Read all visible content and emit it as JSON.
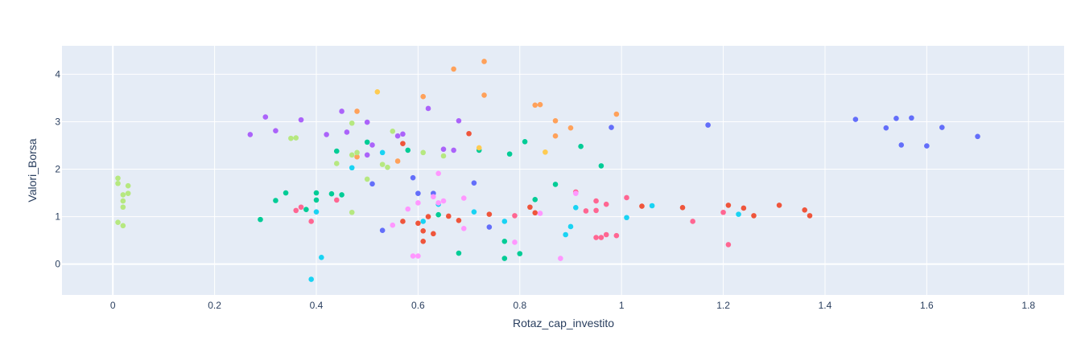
{
  "chart_data": {
    "type": "scatter",
    "title": "",
    "xlabel": "Rotaz_cap_investito",
    "ylabel": "Valori_Borsa",
    "xlim": [
      -0.1,
      1.87
    ],
    "ylim": [
      -0.65,
      4.6
    ],
    "xticks": [
      0,
      0.2,
      0.4,
      0.6,
      0.8,
      1,
      1.2,
      1.4,
      1.6,
      1.8
    ],
    "xtick_labels": [
      "0",
      "0.2",
      "0.4",
      "0.6",
      "0.8",
      "1",
      "1.2",
      "1.4",
      "1.6",
      "1.8"
    ],
    "yticks": [
      0,
      1,
      2,
      3,
      4
    ],
    "ytick_labels": [
      "0",
      "1",
      "2",
      "3",
      "4"
    ],
    "grid": true,
    "legend": "none",
    "colors": {
      "background": "#e5ecf6",
      "grid": "#ffffff",
      "text": "#2a3f5f"
    },
    "series": [
      {
        "color": "#636efa",
        "points": [
          [
            1.46,
            3.05
          ],
          [
            1.52,
            2.87
          ],
          [
            1.54,
            3.07
          ],
          [
            1.55,
            2.51
          ],
          [
            1.57,
            3.08
          ],
          [
            1.6,
            2.49
          ],
          [
            1.63,
            2.88
          ],
          [
            1.7,
            2.69
          ],
          [
            1.17,
            2.93
          ],
          [
            0.98,
            2.88
          ],
          [
            0.71,
            1.71
          ],
          [
            0.59,
            1.82
          ],
          [
            0.6,
            1.49
          ],
          [
            0.63,
            1.49
          ],
          [
            0.51,
            1.69
          ],
          [
            0.53,
            0.71
          ],
          [
            0.74,
            0.78
          ]
        ]
      },
      {
        "color": "#ef553b",
        "points": [
          [
            0.57,
            2.54
          ],
          [
            0.7,
            2.75
          ],
          [
            0.57,
            0.9
          ],
          [
            0.6,
            0.86
          ],
          [
            0.61,
            0.7
          ],
          [
            0.61,
            0.48
          ],
          [
            0.62,
            1.0
          ],
          [
            0.63,
            0.64
          ],
          [
            0.66,
            1.01
          ],
          [
            0.68,
            0.92
          ],
          [
            0.74,
            1.05
          ],
          [
            0.82,
            1.2
          ],
          [
            0.83,
            1.08
          ],
          [
            1.04,
            1.22
          ],
          [
            1.12,
            1.19
          ],
          [
            1.21,
            1.24
          ],
          [
            1.24,
            1.18
          ],
          [
            1.26,
            1.02
          ],
          [
            1.31,
            1.24
          ],
          [
            1.36,
            1.14
          ],
          [
            1.37,
            1.02
          ]
        ]
      },
      {
        "color": "#00cc96",
        "points": [
          [
            0.29,
            0.94
          ],
          [
            0.32,
            1.34
          ],
          [
            0.34,
            1.5
          ],
          [
            0.38,
            1.15
          ],
          [
            0.4,
            1.5
          ],
          [
            0.4,
            1.35
          ],
          [
            0.43,
            1.48
          ],
          [
            0.45,
            1.46
          ],
          [
            0.44,
            2.38
          ],
          [
            0.5,
            2.57
          ],
          [
            0.58,
            2.4
          ],
          [
            0.72,
            2.4
          ],
          [
            0.78,
            2.32
          ],
          [
            0.81,
            2.58
          ],
          [
            0.87,
            1.68
          ],
          [
            0.92,
            2.48
          ],
          [
            0.96,
            2.07
          ],
          [
            0.83,
            1.36
          ],
          [
            0.64,
            1.04
          ],
          [
            0.68,
            0.23
          ],
          [
            0.77,
            0.48
          ],
          [
            0.77,
            0.12
          ],
          [
            0.8,
            0.22
          ]
        ]
      },
      {
        "color": "#ab63fa",
        "points": [
          [
            0.27,
            2.73
          ],
          [
            0.3,
            3.1
          ],
          [
            0.32,
            2.81
          ],
          [
            0.37,
            3.04
          ],
          [
            0.42,
            2.73
          ],
          [
            0.45,
            3.22
          ],
          [
            0.46,
            2.78
          ],
          [
            0.5,
            2.99
          ],
          [
            0.51,
            2.51
          ],
          [
            0.5,
            2.3
          ],
          [
            0.56,
            2.7
          ],
          [
            0.57,
            2.74
          ],
          [
            0.62,
            3.28
          ],
          [
            0.65,
            2.42
          ],
          [
            0.67,
            2.4
          ],
          [
            0.68,
            3.02
          ]
        ]
      },
      {
        "color": "#ffa15a",
        "points": [
          [
            0.48,
            2.26
          ],
          [
            0.48,
            3.22
          ],
          [
            0.56,
            2.17
          ],
          [
            0.61,
            3.53
          ],
          [
            0.67,
            4.11
          ],
          [
            0.73,
            4.27
          ],
          [
            0.73,
            3.56
          ],
          [
            0.83,
            3.35
          ],
          [
            0.84,
            3.36
          ],
          [
            0.87,
            3.02
          ],
          [
            0.87,
            2.7
          ],
          [
            0.9,
            2.87
          ],
          [
            0.99,
            3.16
          ]
        ]
      },
      {
        "color": "#19d3f3",
        "points": [
          [
            0.39,
            -0.32
          ],
          [
            0.4,
            1.1
          ],
          [
            0.41,
            0.14
          ],
          [
            0.47,
            2.03
          ],
          [
            0.53,
            2.35
          ],
          [
            0.61,
            0.9
          ],
          [
            0.64,
            1.26
          ],
          [
            0.71,
            1.1
          ],
          [
            0.77,
            0.9
          ],
          [
            0.89,
            0.62
          ],
          [
            0.9,
            0.79
          ],
          [
            0.91,
            1.19
          ],
          [
            1.01,
            0.98
          ],
          [
            1.06,
            1.23
          ],
          [
            1.23,
            1.05
          ]
        ]
      },
      {
        "color": "#ff6692",
        "points": [
          [
            0.36,
            1.13
          ],
          [
            0.37,
            1.2
          ],
          [
            0.39,
            0.9
          ],
          [
            0.44,
            1.35
          ],
          [
            0.79,
            1.02
          ],
          [
            0.91,
            1.52
          ],
          [
            0.93,
            1.12
          ],
          [
            0.95,
            1.33
          ],
          [
            0.95,
            1.13
          ],
          [
            0.97,
            1.26
          ],
          [
            0.95,
            0.56
          ],
          [
            0.96,
            0.56
          ],
          [
            0.97,
            0.62
          ],
          [
            0.99,
            0.6
          ],
          [
            1.01,
            1.4
          ],
          [
            1.14,
            0.9
          ],
          [
            1.2,
            1.09
          ],
          [
            1.21,
            0.41
          ]
        ]
      },
      {
        "color": "#b6e880",
        "points": [
          [
            0.01,
            1.81
          ],
          [
            0.01,
            1.7
          ],
          [
            0.02,
            1.46
          ],
          [
            0.02,
            1.33
          ],
          [
            0.02,
            1.2
          ],
          [
            0.01,
            0.88
          ],
          [
            0.02,
            0.81
          ],
          [
            0.03,
            1.65
          ],
          [
            0.03,
            1.49
          ],
          [
            0.35,
            2.65
          ],
          [
            0.36,
            2.66
          ],
          [
            0.44,
            2.12
          ],
          [
            0.47,
            2.97
          ],
          [
            0.47,
            2.3
          ],
          [
            0.48,
            2.35
          ],
          [
            0.47,
            1.09
          ],
          [
            0.5,
            1.79
          ],
          [
            0.53,
            2.1
          ],
          [
            0.54,
            2.04
          ],
          [
            0.55,
            2.8
          ],
          [
            0.61,
            2.35
          ],
          [
            0.65,
            2.28
          ]
        ]
      },
      {
        "color": "#ff97ff",
        "points": [
          [
            0.55,
            0.82
          ],
          [
            0.58,
            1.16
          ],
          [
            0.59,
            0.17
          ],
          [
            0.6,
            0.17
          ],
          [
            0.6,
            1.29
          ],
          [
            0.63,
            1.42
          ],
          [
            0.64,
            1.91
          ],
          [
            0.64,
            1.29
          ],
          [
            0.65,
            1.33
          ],
          [
            0.69,
            1.39
          ],
          [
            0.69,
            0.75
          ],
          [
            0.79,
            0.46
          ],
          [
            0.84,
            1.07
          ],
          [
            0.88,
            0.12
          ],
          [
            0.91,
            1.49
          ]
        ]
      },
      {
        "color": "#fecb52",
        "points": [
          [
            0.52,
            3.63
          ],
          [
            0.72,
            2.45
          ],
          [
            0.85,
            2.36
          ]
        ]
      }
    ]
  }
}
